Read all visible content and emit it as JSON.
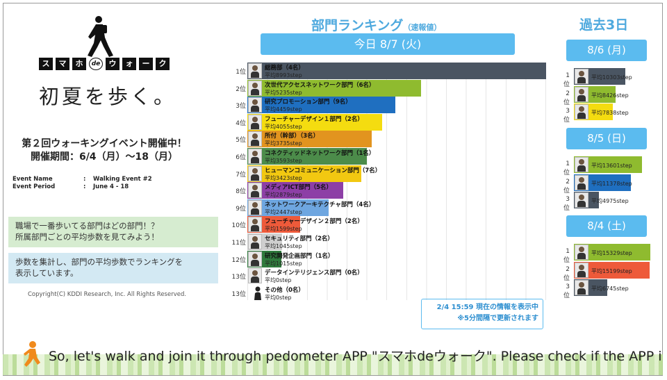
{
  "brand": {
    "chars": [
      "ス",
      "マ",
      "ホ",
      "de",
      "ウ",
      "ォ",
      "ー",
      "ク"
    ],
    "tagline": "初夏を歩く。"
  },
  "event": {
    "title_line1": "第２回ウォーキングイベント開催中！",
    "title_line2": "開催期間：6/4（月）～18（月）",
    "name_label": "Event Name",
    "name_value": "Walking Event #2",
    "period_label": "Event Period",
    "period_value": "June 4 - 18",
    "separator": ":"
  },
  "notes": {
    "note1_line1": "職場で一番歩いてる部門はどの部門！？",
    "note1_line2": "所属部門ごとの平均歩数を見てみよう！",
    "note2_line1": "歩数を集計し、部門の平均歩数でランキングを",
    "note2_line2": "表示しています。"
  },
  "copyright": "Copyright(C) KDDI Research, Inc. All Rights Reserved.",
  "ranking": {
    "title": "部門ランキング",
    "title_suffix": "（速報値）",
    "today_label": "今日 8/7 (火)",
    "max_value": 8993,
    "rows": [
      {
        "rank": "1位",
        "dept": "総務部（4名）",
        "steps": "平均8993step",
        "value": 8993,
        "color": "#4a5562"
      },
      {
        "rank": "2位",
        "dept": "次世代アクセスネットワーク部門（6名）",
        "steps": "平均5235step",
        "value": 5235,
        "color": "#8fbb2f"
      },
      {
        "rank": "3位",
        "dept": "研究プロモーション部門（9名）",
        "steps": "平均4459step",
        "value": 4459,
        "color": "#1f6fc0"
      },
      {
        "rank": "4位",
        "dept": "フューチャーデザイン１部門（2名）",
        "steps": "平均4055step",
        "value": 4055,
        "color": "#f4dc10"
      },
      {
        "rank": "5位",
        "dept": "所付（幹部）（3名）",
        "steps": "平均3735step",
        "value": 3735,
        "color": "#e2941f"
      },
      {
        "rank": "6位",
        "dept": "コネクティッドネットワーク部門（1名）",
        "steps": "平均3593step",
        "value": 3593,
        "color": "#4c8c4a"
      },
      {
        "rank": "7位",
        "dept": "ヒューマンコミュニケーション部門（7名）",
        "steps": "平均3423step",
        "value": 3423,
        "color": "#f2c811"
      },
      {
        "rank": "8位",
        "dept": "メディアICT部門（5名）",
        "steps": "平均2879step",
        "value": 2879,
        "color": "#8d3fa6"
      },
      {
        "rank": "9位",
        "dept": "ネットワークアーキテクチャ部門（4名）",
        "steps": "平均2447step",
        "value": 2447,
        "color": "#6ea6e0"
      },
      {
        "rank": "10位",
        "dept": "フューチャーデザイン２部門（2名）",
        "steps": "平均1599step",
        "value": 1599,
        "color": "#ee5a3a"
      },
      {
        "rank": "11位",
        "dept": "セキュリティ部門（2名）",
        "steps": "平均1045step",
        "value": 1045,
        "color": "#cfcfcf"
      },
      {
        "rank": "12位",
        "dept": "研究開発企画部門（1名）",
        "steps": "平均1015step",
        "value": 1015,
        "color": "#2f7a3c"
      },
      {
        "rank": "13位",
        "dept": "データインテリジェンス部門（0名）",
        "steps": "平均0step",
        "value": 0,
        "color": "#cccccc"
      },
      {
        "rank": "13位",
        "dept": "その他（0名）",
        "steps": "平均0step",
        "value": 0,
        "color": "#cccccc",
        "silhouette": true
      }
    ],
    "info_line1": "2/4 15:59 現在の情報を表示中",
    "info_line2": "※5分間隔で更新されます"
  },
  "past": {
    "title": "過去3日",
    "max_value": 15329,
    "days": [
      {
        "label": "8/6 (月)",
        "rows": [
          {
            "rank": "1位",
            "steps": "平均10303step",
            "value": 10303,
            "color": "#4a5562"
          },
          {
            "rank": "2位",
            "steps": "平均8426step",
            "value": 8426,
            "color": "#8fbb2f"
          },
          {
            "rank": "3位",
            "steps": "平均7838step",
            "value": 7838,
            "color": "#f4dc10"
          }
        ]
      },
      {
        "label": "8/5 (日)",
        "rows": [
          {
            "rank": "1位",
            "steps": "平均13601step",
            "value": 13601,
            "color": "#8fbb2f"
          },
          {
            "rank": "2位",
            "steps": "平均11378step",
            "value": 11378,
            "color": "#1f6fc0"
          },
          {
            "rank": "3位",
            "steps": "平均4975step",
            "value": 4975,
            "color": "#4a5562"
          }
        ]
      },
      {
        "label": "8/4 (土)",
        "rows": [
          {
            "rank": "1位",
            "steps": "平均15329step",
            "value": 15329,
            "color": "#8fbb2f"
          },
          {
            "rank": "2位",
            "steps": "平均15199step",
            "value": 15199,
            "color": "#ee5a3a"
          },
          {
            "rank": "3位",
            "steps": "平均6745step",
            "value": 6745,
            "color": "#4a5562"
          }
        ]
      }
    ]
  },
  "ticker": "So, let's walk and join it through pedometer APP \"スマホdeウォーク\". Please check if the APP i"
}
